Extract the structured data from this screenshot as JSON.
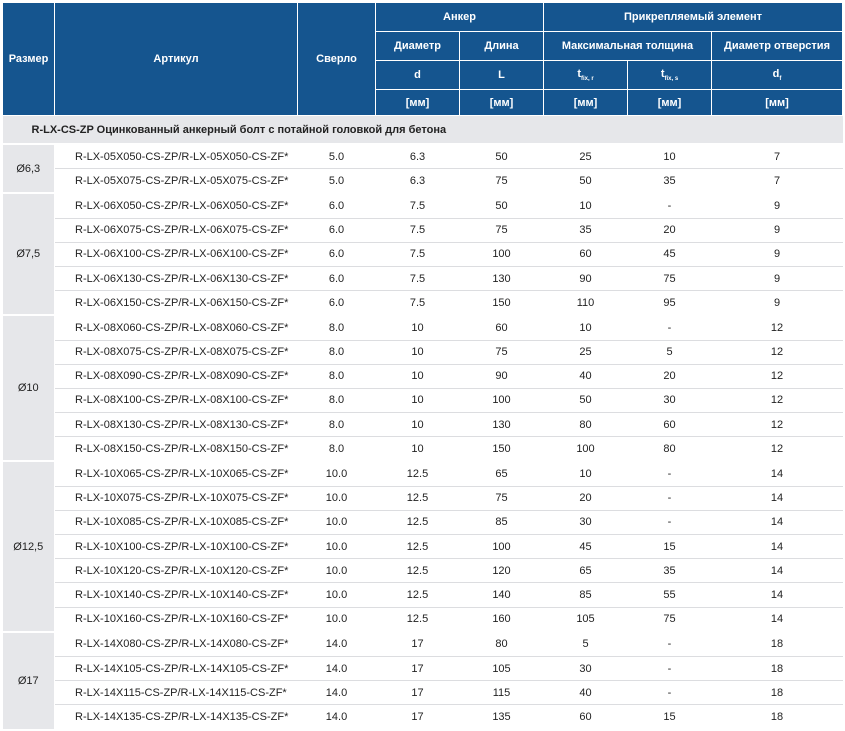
{
  "header": {
    "size": "Размер",
    "article": "Артикул",
    "drill": "Сверло",
    "anchor": "Анкер",
    "element": "Прикрепляемый элемент",
    "diameter": "Диаметр",
    "length": "Длина",
    "max_thickness": "Максимальная толщина",
    "hole_diameter": "Диаметр отверстия",
    "sym_d": "d",
    "sym_L": "L",
    "sym_t": "t",
    "sym_t_sub_r": "fix, r",
    "sym_t_sub_s": "fix, s",
    "sym_df": "d",
    "sym_df_sub": "f",
    "unit": "[мм]"
  },
  "section_title": "R-LX-CS-ZP Оцинкованный анкерный болт с потайной головкой для бетона",
  "groups": [
    {
      "size": "Ø6,3",
      "rows": [
        [
          "R-LX-05X050-CS-ZP/R-LX-05X050-CS-ZF*",
          "5.0",
          "6.3",
          "50",
          "25",
          "10",
          "7"
        ],
        [
          "R-LX-05X075-CS-ZP/R-LX-05X075-CS-ZF*",
          "5.0",
          "6.3",
          "75",
          "50",
          "35",
          "7"
        ]
      ]
    },
    {
      "size": "Ø7,5",
      "rows": [
        [
          "R-LX-06X050-CS-ZP/R-LX-06X050-CS-ZF*",
          "6.0",
          "7.5",
          "50",
          "10",
          "-",
          "9"
        ],
        [
          "R-LX-06X075-CS-ZP/R-LX-06X075-CS-ZF*",
          "6.0",
          "7.5",
          "75",
          "35",
          "20",
          "9"
        ],
        [
          "R-LX-06X100-CS-ZP/R-LX-06X100-CS-ZF*",
          "6.0",
          "7.5",
          "100",
          "60",
          "45",
          "9"
        ],
        [
          "R-LX-06X130-CS-ZP/R-LX-06X130-CS-ZF*",
          "6.0",
          "7.5",
          "130",
          "90",
          "75",
          "9"
        ],
        [
          "R-LX-06X150-CS-ZP/R-LX-06X150-CS-ZF*",
          "6.0",
          "7.5",
          "150",
          "110",
          "95",
          "9"
        ]
      ]
    },
    {
      "size": "Ø10",
      "rows": [
        [
          "R-LX-08X060-CS-ZP/R-LX-08X060-CS-ZF*",
          "8.0",
          "10",
          "60",
          "10",
          "-",
          "12"
        ],
        [
          "R-LX-08X075-CS-ZP/R-LX-08X075-CS-ZF*",
          "8.0",
          "10",
          "75",
          "25",
          "5",
          "12"
        ],
        [
          "R-LX-08X090-CS-ZP/R-LX-08X090-CS-ZF*",
          "8.0",
          "10",
          "90",
          "40",
          "20",
          "12"
        ],
        [
          "R-LX-08X100-CS-ZP/R-LX-08X100-CS-ZF*",
          "8.0",
          "10",
          "100",
          "50",
          "30",
          "12"
        ],
        [
          "R-LX-08X130-CS-ZP/R-LX-08X130-CS-ZF*",
          "8.0",
          "10",
          "130",
          "80",
          "60",
          "12"
        ],
        [
          "R-LX-08X150-CS-ZP/R-LX-08X150-CS-ZF*",
          "8.0",
          "10",
          "150",
          "100",
          "80",
          "12"
        ]
      ]
    },
    {
      "size": "Ø12,5",
      "rows": [
        [
          "R-LX-10X065-CS-ZP/R-LX-10X065-CS-ZF*",
          "10.0",
          "12.5",
          "65",
          "10",
          "-",
          "14"
        ],
        [
          "R-LX-10X075-CS-ZP/R-LX-10X075-CS-ZF*",
          "10.0",
          "12.5",
          "75",
          "20",
          "-",
          "14"
        ],
        [
          "R-LX-10X085-CS-ZP/R-LX-10X085-CS-ZF*",
          "10.0",
          "12.5",
          "85",
          "30",
          "-",
          "14"
        ],
        [
          "R-LX-10X100-CS-ZP/R-LX-10X100-CS-ZF*",
          "10.0",
          "12.5",
          "100",
          "45",
          "15",
          "14"
        ],
        [
          "R-LX-10X120-CS-ZP/R-LX-10X120-CS-ZF*",
          "10.0",
          "12.5",
          "120",
          "65",
          "35",
          "14"
        ],
        [
          "R-LX-10X140-CS-ZP/R-LX-10X140-CS-ZF*",
          "10.0",
          "12.5",
          "140",
          "85",
          "55",
          "14"
        ],
        [
          "R-LX-10X160-CS-ZP/R-LX-10X160-CS-ZF*",
          "10.0",
          "12.5",
          "160",
          "105",
          "75",
          "14"
        ]
      ]
    },
    {
      "size": "Ø17",
      "rows": [
        [
          "R-LX-14X080-CS-ZP/R-LX-14X080-CS-ZF*",
          "14.0",
          "17",
          "80",
          "5",
          "-",
          "18"
        ],
        [
          "R-LX-14X105-CS-ZP/R-LX-14X105-CS-ZF*",
          "14.0",
          "17",
          "105",
          "30",
          "-",
          "18"
        ],
        [
          "R-LX-14X115-CS-ZP/R-LX-14X115-CS-ZF*",
          "14.0",
          "17",
          "115",
          "40",
          "-",
          "18"
        ],
        [
          "R-LX-14X135-CS-ZP/R-LX-14X135-CS-ZF*",
          "14.0",
          "17",
          "135",
          "60",
          "15",
          "18"
        ]
      ]
    }
  ]
}
